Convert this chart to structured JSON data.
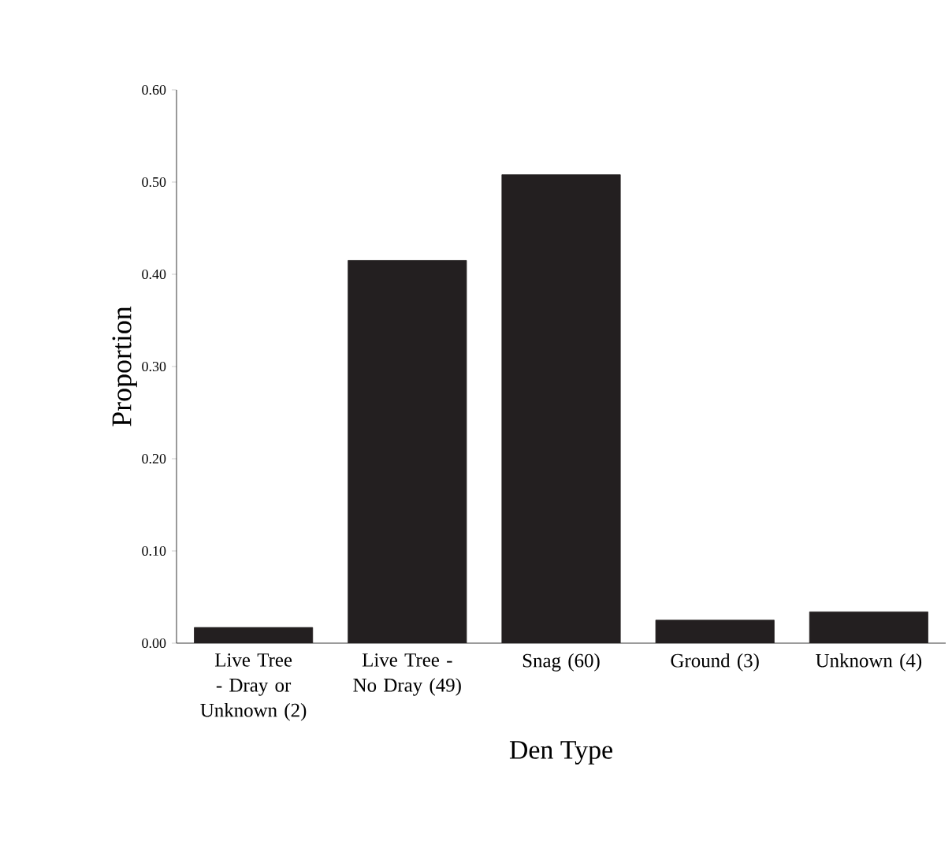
{
  "chart_data": {
    "type": "bar",
    "xlabel": "Den Type",
    "ylabel": "Proportion",
    "categories": [
      "Live Tree - Dray or Unknown (2)",
      "Live Tree - No Dray (49)",
      "Snag (60)",
      "Ground (3)",
      "Unknown (4)"
    ],
    "values": [
      0.017,
      0.415,
      0.508,
      0.025,
      0.034
    ],
    "color": "#231f20",
    "ylim": [
      0,
      0.6
    ],
    "yticks": [
      {
        "value": 0,
        "label": "0.00"
      },
      {
        "value": 0.1,
        "label": "0.10"
      },
      {
        "value": 0.2,
        "label": "0.20"
      },
      {
        "value": 0.3,
        "label": "0.30"
      },
      {
        "value": 0.4,
        "label": "0.40"
      },
      {
        "value": 0.5,
        "label": "0.50"
      },
      {
        "value": 0.6,
        "label": "0.60"
      }
    ],
    "grid": false
  }
}
